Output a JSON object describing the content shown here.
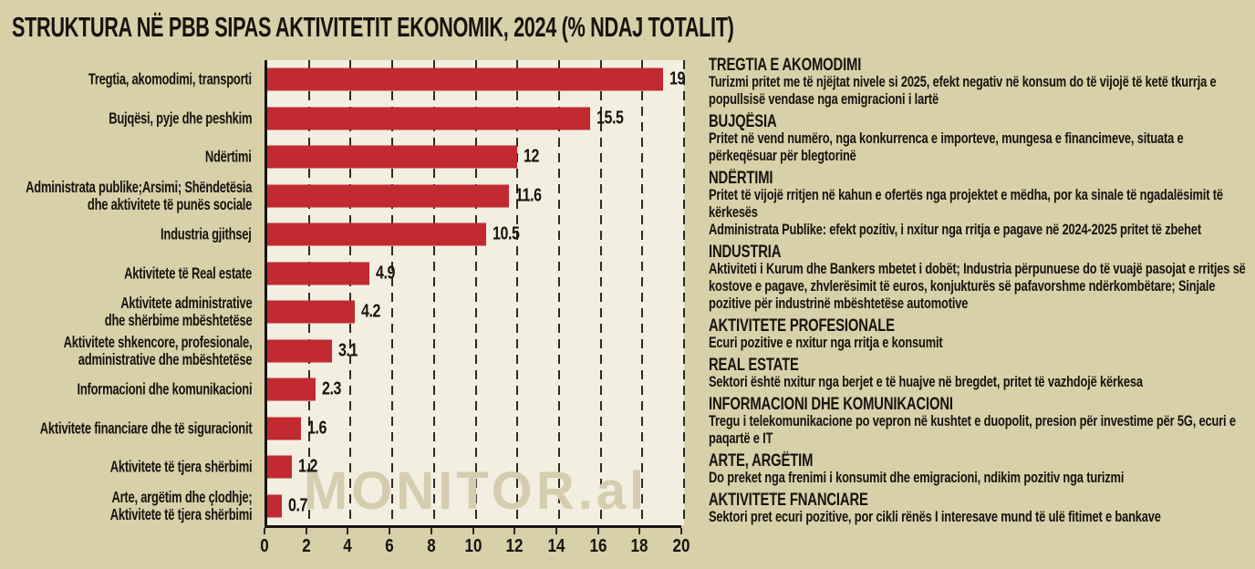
{
  "title": "STRUKTURA NË PBB SIPAS AKTIVITETIT EKONOMIK, 2024 (% NDAJ TOTALIT)",
  "watermark": "MONITOR.al",
  "colors": {
    "page_bg": "#d8d0a9",
    "plot_bg": "#f2efe1",
    "bar": "#c02a30",
    "text": "#17130e",
    "watermark": "#d5cdad"
  },
  "chart_data": {
    "type": "bar",
    "orientation": "horizontal",
    "title": "STRUKTURA NË PBB SIPAS AKTIVITETIT EKONOMIK, 2024 (% NDAJ TOTALIT)",
    "xlim": [
      0,
      20
    ],
    "x_ticks": [
      "0",
      "2",
      "4",
      "6",
      "8",
      "10",
      "12",
      "14",
      "16",
      "18",
      "20"
    ],
    "grid": "dashed-vertical",
    "legend": "none",
    "categories": [
      {
        "lines": [
          "Tregtia, akomodimi, transporti"
        ]
      },
      {
        "lines": [
          "Bujqësi, pyje dhe peshkim"
        ]
      },
      {
        "lines": [
          "Ndërtimi"
        ]
      },
      {
        "lines": [
          "Administrata publike;Arsimi; Shëndetësia",
          "dhe aktivitete të punës sociale"
        ]
      },
      {
        "lines": [
          "Industria gjithsej"
        ]
      },
      {
        "lines": [
          "Aktivitete të Real estate"
        ]
      },
      {
        "lines": [
          "Aktivitete administrative",
          "dhe shërbime mbështetëse"
        ]
      },
      {
        "lines": [
          "Aktivitete shkencore, profesionale,",
          "administrative dhe mbështetëse"
        ]
      },
      {
        "lines": [
          "Informacioni dhe komunikacioni"
        ]
      },
      {
        "lines": [
          "Aktivitete financiare dhe të siguracionit"
        ]
      },
      {
        "lines": [
          "Aktivitete të tjera shërbimi"
        ]
      },
      {
        "lines": [
          "Arte, argëtim dhe çlodhje;",
          "Aktivitete të tjera shërbimi"
        ]
      }
    ],
    "values": [
      19,
      15.5,
      12,
      11.6,
      10.5,
      4.9,
      4.2,
      3.1,
      2.3,
      1.6,
      1.2,
      0.7
    ],
    "value_labels": [
      "19",
      "15.5",
      "12",
      "11.6",
      "10.5",
      "4.9",
      "4.2",
      "3.1",
      "2.3",
      "1.6",
      "1.2",
      "0.7"
    ]
  },
  "notes": [
    {
      "heading": "TREGTIA E AKOMODIMI",
      "paragraphs": [
        "Turizmi pritet me të njëjtat nivele si 2025,  efekt negativ në konsum do të vijojë të ketë tkurrja e popullsisë vendase nga emigracioni i lartë"
      ]
    },
    {
      "heading": "BUJQËSIA",
      "paragraphs": [
        "Pritet në vend numëro, nga konkurrenca e importeve, mungesa e financimeve, situata e përkeqësuar për blegtorinë"
      ]
    },
    {
      "heading": "NDËRTIMI",
      "paragraphs": [
        "Pritet të vijojë rritjen në kahun e ofertës nga projektet e mëdha, por ka sinale të ngadalësimit të kërkesës",
        "Administrata Publike: efekt pozitiv, i nxitur nga rritja e pagave në 2024-2025 pritet të zbehet"
      ]
    },
    {
      "heading": "INDUSTRIA",
      "paragraphs": [
        "Aktiviteti i Kurum dhe Bankers mbetet i dobët; Industria përpunuese do të vuajë pasojat e rritjes së kostove e pagave, zhvlerësimit të euros,  konjukturës së pafavorshme ndërkombëtare; Sinjale pozitive për industrinë mbështetëse automotive"
      ]
    },
    {
      "heading": "AKTIVITETE PROFESIONALE",
      "paragraphs": [
        "Ecuri pozitive e nxitur nga rritja e konsumit"
      ]
    },
    {
      "heading": "REAL ESTATE",
      "paragraphs": [
        "Sektori është nxitur nga berjet e të huajve në bregdet, pritet të vazhdojë kërkesa"
      ]
    },
    {
      "heading": "INFORMACIONI DHE KOMUNIKACIONI",
      "paragraphs": [
        "Tregu i  telekomunikacione po vepron në kushtet e duopolit, presion për investime për 5G,  ecuri e paqartë e IT"
      ]
    },
    {
      "heading": "ARTE, ARGËTIM",
      "paragraphs": [
        "Do preket nga frenimi i konsumit dhe emigracioni, ndikim pozitiv nga turizmi"
      ]
    },
    {
      "heading": "AKTIVITETE FNANCIARE",
      "paragraphs": [
        "Sektori pret ecuri pozitive, por cikli rënës I interesave mund të ulë fitimet e bankave"
      ]
    }
  ]
}
